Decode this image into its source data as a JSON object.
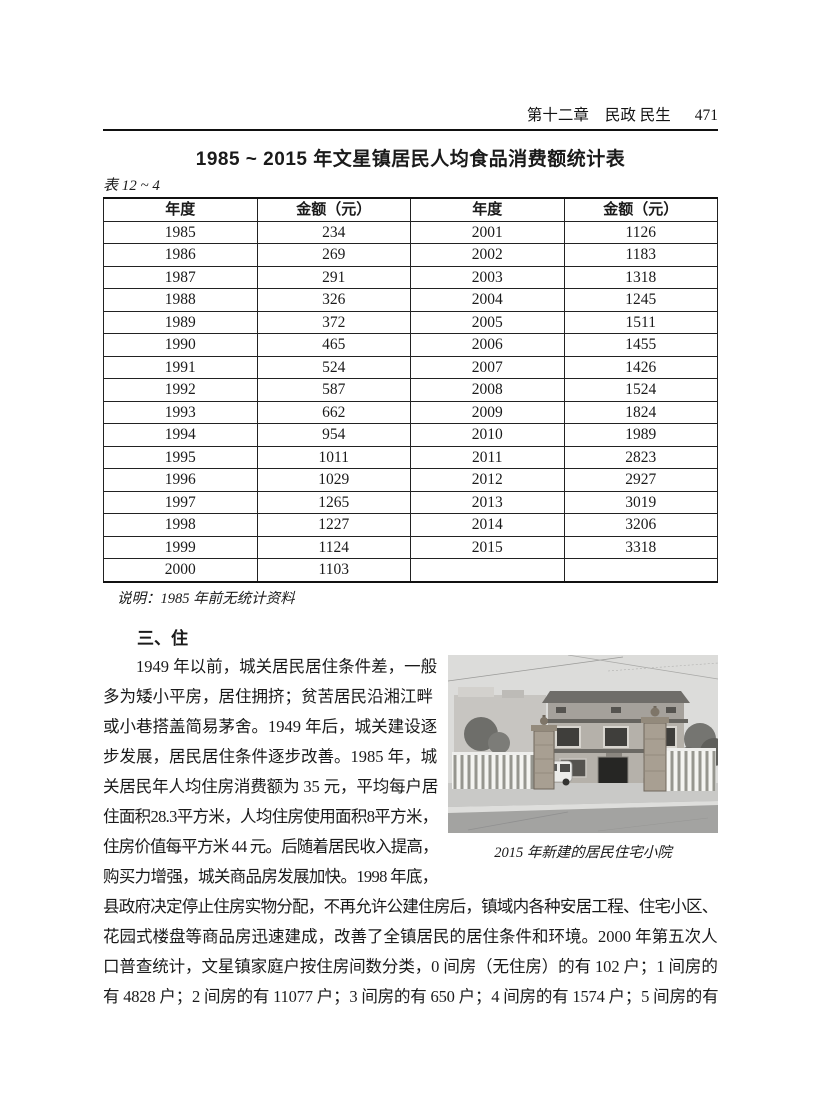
{
  "colors": {
    "ink": "#1a1a1a",
    "paper": "#ffffff"
  },
  "header": {
    "chapter": "第十二章",
    "section": "民政 民生",
    "page_number": "471"
  },
  "stats_table": {
    "title": "1985 ~ 2015 年文星镇居民人均食品消费额统计表",
    "label": "表 12 ~ 4",
    "columns": [
      "年度",
      "金额（元）",
      "年度",
      "金额（元）"
    ],
    "rows": [
      [
        "1985",
        "234",
        "2001",
        "1126"
      ],
      [
        "1986",
        "269",
        "2002",
        "1183"
      ],
      [
        "1987",
        "291",
        "2003",
        "1318"
      ],
      [
        "1988",
        "326",
        "2004",
        "1245"
      ],
      [
        "1989",
        "372",
        "2005",
        "1511"
      ],
      [
        "1990",
        "465",
        "2006",
        "1455"
      ],
      [
        "1991",
        "524",
        "2007",
        "1426"
      ],
      [
        "1992",
        "587",
        "2008",
        "1524"
      ],
      [
        "1993",
        "662",
        "2009",
        "1824"
      ],
      [
        "1994",
        "954",
        "2010",
        "1989"
      ],
      [
        "1995",
        "1011",
        "2011",
        "2823"
      ],
      [
        "1996",
        "1029",
        "2012",
        "2927"
      ],
      [
        "1997",
        "1265",
        "2013",
        "3019"
      ],
      [
        "1998",
        "1227",
        "2014",
        "3206"
      ],
      [
        "1999",
        "1124",
        "2015",
        "3318"
      ],
      [
        "2000",
        "1103",
        "",
        ""
      ]
    ],
    "note": "说明：1985 年前无统计资料"
  },
  "housing": {
    "heading": "三、住",
    "narrow_lines": [
      "　　1949 年以前，城关居民居住条件差，一般",
      "多为矮小平房，居住拥挤；贫苦居民沿湘江畔",
      "或小巷搭盖简易茅舍。1949 年后，城关建设逐",
      "步发展，居民居住条件逐步改善。1985 年，城",
      "关居民年人均住房消费额为 35 元，平均每户居",
      "住面积28.3平方米，人均住房使用面积8平方米，",
      "住房价值每平方米 44 元。后随着居民收入提高，",
      "购买力增强，城关商品房发展加快。1998 年底，"
    ],
    "wide_lines": [
      "县政府决定停止住房实物分配，不再允许公建住房后，镇域内各种安居工程、住宅小区、",
      "花园式楼盘等商品房迅速建成，改善了全镇居民的居住条件和环境。2000 年第五次人",
      "口普查统计，文星镇家庭户按住房间数分类，0 间房（无住房）的有 102 户；1 间房的",
      "有 4828 户；2 间房的有 11077 户；3 间房的有 650 户；4 间房的有 1574 户；5 间房的有"
    ],
    "photo_caption": "2015 年新建的居民住宅小院"
  }
}
